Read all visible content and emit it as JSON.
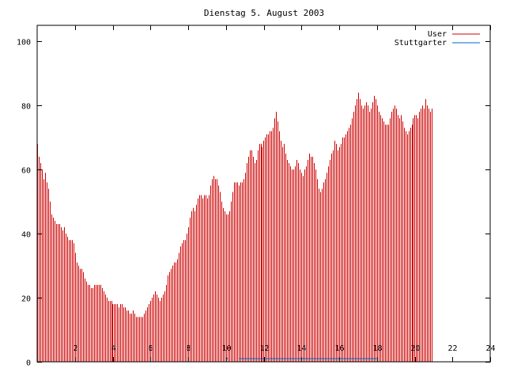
{
  "chart_data": {
    "type": "bar",
    "title": "Dienstag 5. August 2003",
    "xlabel": "",
    "ylabel": "",
    "xlim": [
      0,
      24
    ],
    "ylim": [
      0,
      105
    ],
    "xticks": [
      2,
      4,
      6,
      8,
      10,
      12,
      14,
      16,
      18,
      20,
      22,
      24
    ],
    "yticks": [
      0,
      20,
      40,
      60,
      80,
      100
    ],
    "grid": false,
    "legend_position": "top-right",
    "series": [
      {
        "name": "User",
        "color": "#cc0000",
        "sample_interval_hours": 0.08333,
        "values": [
          68,
          64,
          62,
          60,
          57,
          59,
          56,
          54,
          50,
          46,
          45,
          44,
          43,
          43,
          43,
          42,
          41,
          42,
          40,
          39,
          38,
          38,
          38,
          37,
          34,
          31,
          30,
          29,
          29,
          28,
          26,
          25,
          24,
          24,
          23,
          23,
          24,
          24,
          24,
          24,
          24,
          23,
          22,
          21,
          20,
          19,
          19,
          19,
          18,
          18,
          18,
          18,
          17,
          18,
          18,
          17,
          17,
          16,
          16,
          15,
          15,
          16,
          15,
          14,
          14,
          14,
          14,
          14,
          15,
          16,
          17,
          18,
          19,
          20,
          21,
          22,
          21,
          20,
          19,
          20,
          21,
          22,
          24,
          27,
          28,
          29,
          30,
          31,
          31,
          32,
          34,
          36,
          37,
          38,
          38,
          40,
          42,
          45,
          47,
          48,
          47,
          49,
          51,
          52,
          52,
          51,
          52,
          52,
          51,
          52,
          55,
          57,
          58,
          57,
          57,
          55,
          53,
          50,
          48,
          47,
          46,
          46,
          47,
          50,
          53,
          56,
          56,
          56,
          55,
          56,
          56,
          57,
          59,
          62,
          64,
          66,
          66,
          64,
          62,
          63,
          66,
          68,
          68,
          67,
          69,
          70,
          71,
          71,
          72,
          72,
          73,
          76,
          78,
          75,
          72,
          69,
          67,
          68,
          65,
          63,
          62,
          61,
          60,
          60,
          61,
          63,
          62,
          60,
          59,
          58,
          60,
          61,
          63,
          65,
          64,
          64,
          62,
          60,
          57,
          54,
          53,
          54,
          56,
          57,
          59,
          61,
          63,
          65,
          66,
          69,
          68,
          66,
          67,
          68,
          70,
          70,
          71,
          72,
          73,
          74,
          76,
          78,
          80,
          82,
          84,
          82,
          80,
          79,
          80,
          81,
          80,
          78,
          79,
          81,
          83,
          82,
          80,
          78,
          77,
          76,
          75,
          74,
          74,
          74,
          76,
          78,
          79,
          80,
          79,
          77,
          76,
          77,
          75,
          73,
          72,
          71,
          72,
          73,
          74,
          76,
          77,
          77,
          76,
          78,
          79,
          80,
          79,
          82,
          80,
          79,
          78,
          79
        ]
      },
      {
        "name": "Stuttgarter",
        "color": "#0066cc",
        "segments": [
          {
            "x_start": 10.0,
            "x_end": 10.1,
            "value": 1
          },
          {
            "x_start": 10.7,
            "x_end": 18.0,
            "value": 1
          }
        ]
      }
    ]
  }
}
